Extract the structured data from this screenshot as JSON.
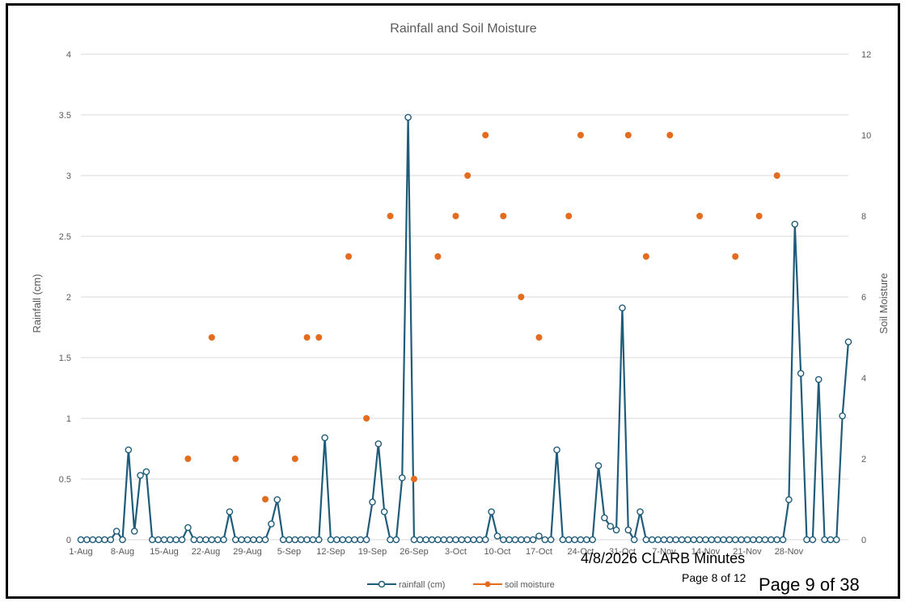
{
  "chart_data": {
    "type": "line",
    "title": "Rainfall and Soil Moisture",
    "ylabel": "Rainfall (cm)",
    "y2label": "Soil Moisture",
    "ylim": [
      0,
      4
    ],
    "y2lim": [
      0,
      12
    ],
    "yticks": [
      "0",
      "0.5",
      "1",
      "1.5",
      "2",
      "2.5",
      "3",
      "3.5",
      "4"
    ],
    "y2ticks": [
      "0",
      "2",
      "4",
      "6",
      "8",
      "10",
      "12"
    ],
    "xtick_labels": [
      "1-Aug",
      "8-Aug",
      "15-Aug",
      "22-Aug",
      "29-Aug",
      "5-Sep",
      "12-Sep",
      "19-Sep",
      "26-Sep",
      "3-Oct",
      "10-Oct",
      "17-Oct",
      "24-Oct",
      "31-Oct",
      "7-Nov",
      "14-Nov",
      "21-Nov",
      "28-Nov"
    ],
    "grid": true,
    "legend_position": "bottom",
    "series": [
      {
        "name": "rainfall (cm)",
        "type": "line-marker",
        "axis": "left",
        "color": "#1f5c7a",
        "values": [
          0,
          0,
          0,
          0,
          0,
          0,
          0.07,
          0,
          0.74,
          0.07,
          0.53,
          0.56,
          0,
          0,
          0,
          0,
          0,
          0,
          0.1,
          0,
          0,
          0,
          0,
          0,
          0,
          0.23,
          0,
          0,
          0,
          0,
          0,
          0,
          0.13,
          0.33,
          0,
          0,
          0,
          0,
          0,
          0,
          0,
          0.84,
          0,
          0,
          0,
          0,
          0,
          0,
          0,
          0.31,
          0.79,
          0.23,
          0,
          0,
          0.51,
          3.48,
          0,
          0,
          0,
          0,
          0,
          0,
          0,
          0,
          0,
          0,
          0,
          0,
          0,
          0.23,
          0.03,
          0,
          0,
          0,
          0,
          0,
          0,
          0.03,
          0,
          0,
          0.74,
          0,
          0,
          0,
          0,
          0,
          0,
          0.61,
          0.18,
          0.11,
          0.08,
          1.91,
          0.08,
          0,
          0.23,
          0,
          0,
          0,
          0,
          0,
          0,
          0,
          0,
          0,
          0,
          0,
          0,
          0,
          0,
          0,
          0,
          0,
          0,
          0,
          0,
          0,
          0,
          0,
          0,
          0.33,
          2.6,
          1.37,
          0,
          0,
          1.32,
          0,
          0,
          0,
          1.02,
          1.63
        ]
      },
      {
        "name": "soil moisture",
        "type": "scatter",
        "axis": "right",
        "color": "#e36c1e",
        "points": [
          {
            "x": 18,
            "y": 2
          },
          {
            "x": 22,
            "y": 5
          },
          {
            "x": 26,
            "y": 2
          },
          {
            "x": 31,
            "y": 1
          },
          {
            "x": 36,
            "y": 2
          },
          {
            "x": 38,
            "y": 5
          },
          {
            "x": 40,
            "y": 5
          },
          {
            "x": 45,
            "y": 7
          },
          {
            "x": 48,
            "y": 3
          },
          {
            "x": 52,
            "y": 8
          },
          {
            "x": 56,
            "y": 1.5
          },
          {
            "x": 60,
            "y": 7
          },
          {
            "x": 63,
            "y": 8
          },
          {
            "x": 65,
            "y": 9
          },
          {
            "x": 68,
            "y": 10
          },
          {
            "x": 71,
            "y": 8
          },
          {
            "x": 74,
            "y": 6
          },
          {
            "x": 77,
            "y": 5
          },
          {
            "x": 82,
            "y": 8
          },
          {
            "x": 84,
            "y": 10
          },
          {
            "x": 92,
            "y": 10
          },
          {
            "x": 95,
            "y": 7
          },
          {
            "x": 99,
            "y": 10
          },
          {
            "x": 104,
            "y": 8
          },
          {
            "x": 110,
            "y": 7
          },
          {
            "x": 114,
            "y": 8
          },
          {
            "x": 117,
            "y": 9
          }
        ]
      }
    ]
  },
  "footer": {
    "minutes_title": "4/8/2026 CLARB Minutes",
    "minutes_page": "Page 8 of 12",
    "packet_page": "Page 9 of 38"
  }
}
